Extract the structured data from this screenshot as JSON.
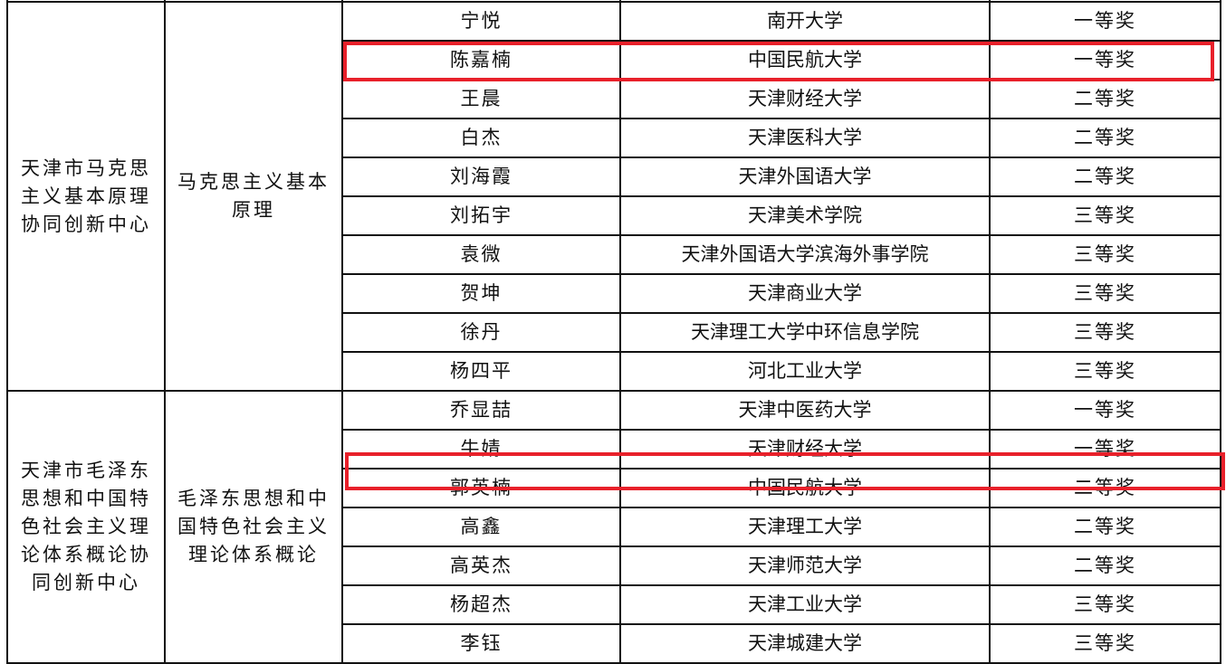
{
  "highlight_color": "#e8202a",
  "groups": [
    {
      "center_lines": [
        "天津市马克思",
        "主义基本原理",
        "协同创新中心"
      ],
      "course_lines": [
        "马克思主义基本",
        "原理"
      ],
      "rows": [
        {
          "name": "宁悦",
          "school": "南开大学",
          "prize": "一等奖",
          "highlighted": false
        },
        {
          "name": "陈嘉楠",
          "school": "中国民航大学",
          "prize": "一等奖",
          "highlighted": true
        },
        {
          "name": "王晨",
          "school": "天津财经大学",
          "prize": "二等奖",
          "highlighted": false
        },
        {
          "name": "白杰",
          "school": "天津医科大学",
          "prize": "二等奖",
          "highlighted": false
        },
        {
          "name": "刘海霞",
          "school": "天津外国语大学",
          "prize": "二等奖",
          "highlighted": false
        },
        {
          "name": "刘拓宇",
          "school": "天津美术学院",
          "prize": "三等奖",
          "highlighted": false
        },
        {
          "name": "袁微",
          "school": "天津外国语大学滨海外事学院",
          "prize": "三等奖",
          "highlighted": false
        },
        {
          "name": "贺坤",
          "school": "天津商业大学",
          "prize": "三等奖",
          "highlighted": false
        },
        {
          "name": "徐丹",
          "school": "天津理工大学中环信息学院",
          "prize": "三等奖",
          "highlighted": false
        },
        {
          "name": "杨四平",
          "school": "河北工业大学",
          "prize": "三等奖",
          "highlighted": false
        }
      ]
    },
    {
      "center_lines": [
        "天津市毛泽东",
        "思想和中国特",
        "色社会主义理",
        "论体系概论协",
        "同创新中心"
      ],
      "course_lines": [
        "毛泽东思想和中",
        "国特色社会主义",
        "理论体系概论"
      ],
      "rows": [
        {
          "name": "乔显喆",
          "school": "天津中医药大学",
          "prize": "一等奖",
          "highlighted": false
        },
        {
          "name": "牛婧",
          "school": "天津财经大学",
          "prize": "一等奖",
          "highlighted": false
        },
        {
          "name": "郭英楠",
          "school": "中国民航大学",
          "prize": "二等奖",
          "highlighted": true
        },
        {
          "name": "高鑫",
          "school": "天津理工大学",
          "prize": "二等奖",
          "highlighted": false
        },
        {
          "name": "高英杰",
          "school": "天津师范大学",
          "prize": "二等奖",
          "highlighted": false
        },
        {
          "name": "杨超杰",
          "school": "天津工业大学",
          "prize": "三等奖",
          "highlighted": false
        },
        {
          "name": "李钰",
          "school": "天津城建大学",
          "prize": "三等奖",
          "highlighted": false
        }
      ]
    }
  ]
}
